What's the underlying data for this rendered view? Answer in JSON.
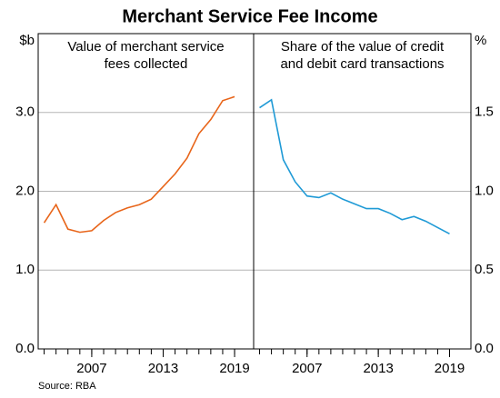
{
  "title": "Merchant Service Fee Income",
  "source": "Source:   RBA",
  "chart_data": [
    {
      "type": "line",
      "subtitle": [
        "Value of merchant service",
        "fees collected"
      ],
      "y_label": "$b",
      "x": [
        2003,
        2004,
        2005,
        2006,
        2007,
        2008,
        2009,
        2010,
        2011,
        2012,
        2013,
        2014,
        2015,
        2016,
        2017,
        2018,
        2019
      ],
      "series": [
        {
          "color": "#e8651a",
          "values": [
            1.6,
            1.83,
            1.52,
            1.48,
            1.5,
            1.63,
            1.73,
            1.79,
            1.83,
            1.9,
            2.06,
            2.22,
            2.42,
            2.73,
            2.91,
            3.15,
            3.2
          ]
        }
      ],
      "xlim": [
        2002.5,
        2020.6
      ],
      "xticks": [
        2007,
        2013,
        2019
      ],
      "ylim": [
        0,
        4
      ],
      "yticks": [
        {
          "value": 0,
          "label": "0.0"
        },
        {
          "value": 1,
          "label": "1.0"
        },
        {
          "value": 2,
          "label": "2.0"
        },
        {
          "value": 3,
          "label": "3.0"
        }
      ],
      "axis_side": "left",
      "grid": true
    },
    {
      "type": "line",
      "subtitle": [
        "Share of the value of credit",
        "and debit card transactions"
      ],
      "y_label": "%",
      "x": [
        2003,
        2004,
        2005,
        2006,
        2007,
        2008,
        2009,
        2010,
        2011,
        2012,
        2013,
        2014,
        2015,
        2016,
        2017,
        2018,
        2019
      ],
      "series": [
        {
          "color": "#1f9ad6",
          "values": [
            1.53,
            1.58,
            1.2,
            1.06,
            0.97,
            0.96,
            0.99,
            0.95,
            0.92,
            0.89,
            0.89,
            0.86,
            0.82,
            0.84,
            0.81,
            0.77,
            0.73
          ]
        }
      ],
      "xlim": [
        2002.5,
        2020.8
      ],
      "xticks": [
        2007,
        2013,
        2019
      ],
      "ylim": [
        0,
        2
      ],
      "yticks": [
        {
          "value": 0,
          "label": "0.0"
        },
        {
          "value": 0.5,
          "label": "0.5"
        },
        {
          "value": 1,
          "label": "1.0"
        },
        {
          "value": 1.5,
          "label": "1.5"
        }
      ],
      "axis_side": "right",
      "grid": true
    }
  ]
}
